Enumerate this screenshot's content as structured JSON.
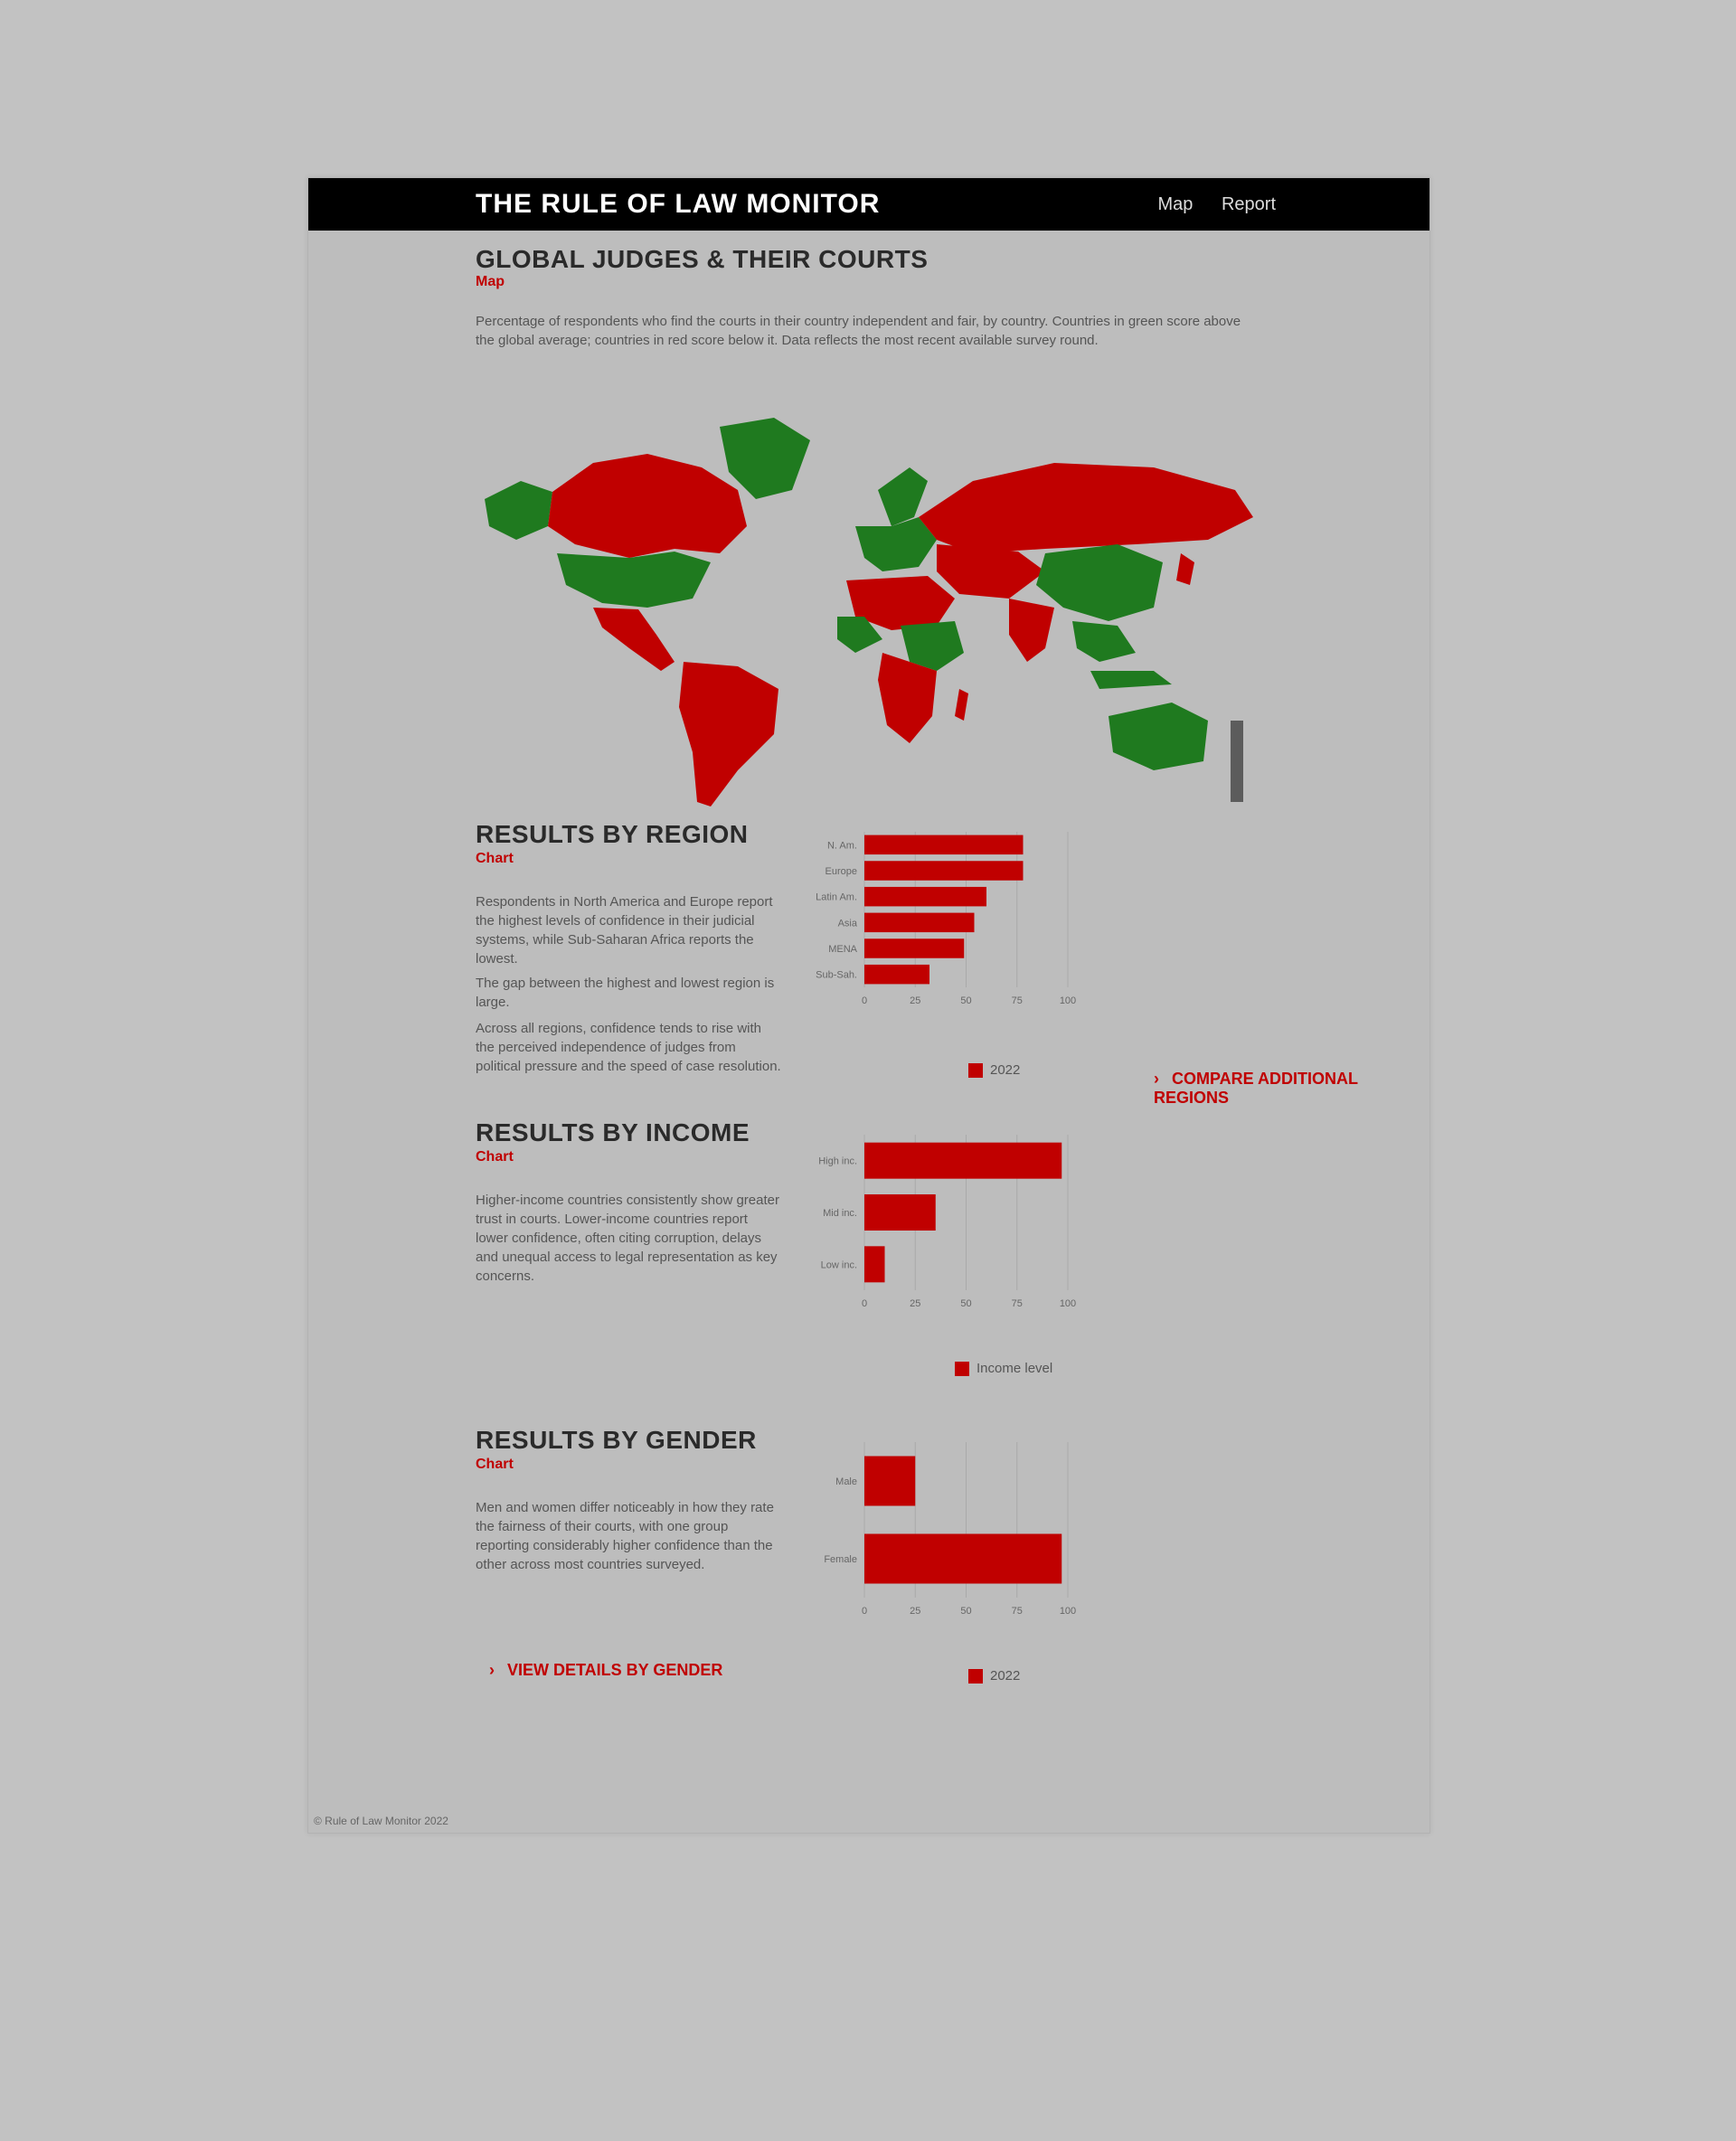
{
  "header": {
    "title": "THE RULE OF LAW MONITOR",
    "nav": [
      "Map",
      "Report"
    ]
  },
  "map_section": {
    "title": "GLOBAL JUDGES & THEIR COURTS",
    "subtitle": "Map",
    "description": "Percentage of respondents who find the courts in their country independent and fair, by country. Countries in green score above the global average; countries in red score below it. Data reflects the most recent available survey round.",
    "colors": {
      "above": "#1f7a1f",
      "below": "#c00000",
      "land_none": "#bdbdbd"
    }
  },
  "region_section": {
    "title": "RESULTS BY REGION",
    "subtitle": "Chart",
    "paragraphs": [
      "Respondents in North America and Europe report the highest levels of confidence in their judicial systems, while Sub-Saharan Africa reports the lowest.",
      "The gap between the highest and lowest region is large.",
      "Across all regions, confidence tends to rise with the perceived independence of judges from political pressure and the speed of case resolution."
    ],
    "legend": "2022",
    "link": "COMPARE ADDITIONAL REGIONS"
  },
  "income_section": {
    "title": "RESULTS BY INCOME",
    "subtitle": "Chart",
    "paragraph": "Higher-income countries consistently show greater trust in courts. Lower-income countries report lower confidence, often citing corruption, delays and unequal access to legal representation as key concerns.",
    "legend": "Income level"
  },
  "gender_section": {
    "title": "RESULTS BY GENDER",
    "subtitle": "Chart",
    "paragraph": "Men and women differ noticeably in how they rate the fairness of their courts, with one group reporting considerably higher confidence than the other across most countries surveyed.",
    "legend": "2022",
    "link": "VIEW DETAILS BY GENDER"
  },
  "footer": "© Rule of Law Monitor 2022",
  "chart_data": [
    {
      "type": "bar",
      "orientation": "horizontal",
      "categories": [
        "N. Am.",
        "Europe",
        "Latin Am.",
        "Asia",
        "MENA",
        "Sub-Sah."
      ],
      "values": [
        78,
        78,
        60,
        54,
        49,
        32
      ],
      "xlim": [
        0,
        100
      ],
      "xticks": [
        "0",
        "25",
        "50",
        "75",
        "100"
      ],
      "legend": "2022",
      "color": "#c00000"
    },
    {
      "type": "bar",
      "orientation": "horizontal",
      "categories": [
        "High inc.",
        "Mid inc.",
        "Low inc."
      ],
      "values": [
        97,
        35,
        10
      ],
      "xlim": [
        0,
        100
      ],
      "xticks": [
        "0",
        "25",
        "50",
        "75",
        "100"
      ],
      "legend": "Income level",
      "color": "#c00000"
    },
    {
      "type": "bar",
      "orientation": "horizontal",
      "categories": [
        "Male",
        "Female"
      ],
      "values": [
        25,
        97
      ],
      "xlim": [
        0,
        100
      ],
      "xticks": [
        "0",
        "25",
        "50",
        "75",
        "100"
      ],
      "legend": "2022",
      "color": "#c00000"
    }
  ]
}
